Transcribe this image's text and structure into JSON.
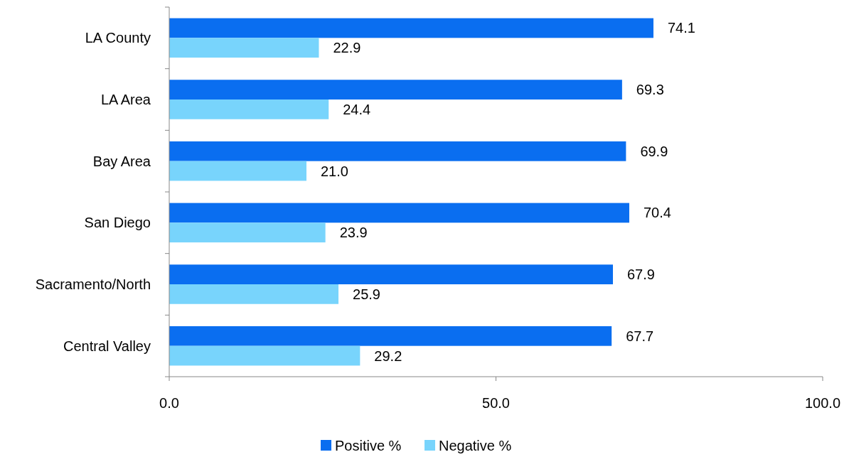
{
  "chart_data": {
    "type": "bar",
    "orientation": "horizontal",
    "categories": [
      "LA County",
      "LA Area",
      "Bay Area",
      "San Diego",
      "Sacramento/North",
      "Central Valley"
    ],
    "series": [
      {
        "name": "Positive %",
        "color": "#0a6ef0",
        "values": [
          74.1,
          69.3,
          69.9,
          70.4,
          67.9,
          67.7
        ]
      },
      {
        "name": "Negative %",
        "color": "#78d4fc",
        "values": [
          22.9,
          24.4,
          21.0,
          23.9,
          25.9,
          29.2
        ]
      }
    ],
    "value_labels": [
      [
        "74.1",
        "69.3",
        "69.9",
        "70.4",
        "67.9",
        "67.7"
      ],
      [
        "22.9",
        "24.4",
        "21.0",
        "23.9",
        "25.9",
        "29.2"
      ]
    ],
    "xlim": [
      0,
      100
    ],
    "xticks": [
      {
        "value": 0,
        "label": "0.0"
      },
      {
        "value": 50,
        "label": "50.0"
      },
      {
        "value": 100,
        "label": "100.0"
      }
    ],
    "grid": false,
    "legend": "bottom"
  }
}
